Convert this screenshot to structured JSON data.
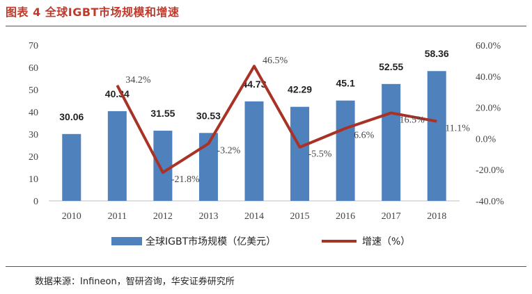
{
  "title": "图表 4 全球IGBT市场规模和增速",
  "source": "数据来源：Infineon，智研咨询，华安证券研究所",
  "colors": {
    "bar": "#4f81bd",
    "line": "#a93226",
    "title": "#c0392b"
  },
  "chart_data": {
    "type": "bar",
    "categories": [
      "2010",
      "2011",
      "2012",
      "2013",
      "2014",
      "2015",
      "2016",
      "2017",
      "2018"
    ],
    "series": [
      {
        "name": "全球IGBT市场规模（亿美元）",
        "type": "bar",
        "axis": "left",
        "values": [
          30.06,
          40.34,
          31.55,
          30.53,
          44.73,
          42.29,
          45.1,
          52.55,
          58.36
        ],
        "labels": [
          "30.06",
          "40.34",
          "31.55",
          "30.53",
          "44.73",
          "42.29",
          "45.1",
          "52.55",
          "58.36"
        ]
      },
      {
        "name": "增速（%）",
        "type": "line",
        "axis": "right",
        "values": [
          null,
          34.2,
          -21.8,
          -3.2,
          46.5,
          -5.5,
          6.6,
          16.5,
          11.1
        ],
        "labels": [
          "",
          "34.2%",
          "-21.8%",
          "-3.2%",
          "46.5%",
          "-5.5%",
          "6.6%",
          "16.5%",
          "11.1%"
        ]
      }
    ],
    "y_left": {
      "min": 0,
      "max": 70,
      "ticks": [
        "0",
        "10",
        "20",
        "30",
        "40",
        "50",
        "60",
        "70"
      ]
    },
    "y_right": {
      "min": -40,
      "max": 60,
      "ticks": [
        "-40.0%",
        "-20.0%",
        "0.0%",
        "20.0%",
        "40.0%",
        "60.0%"
      ]
    },
    "grid": false,
    "legend": "bottom"
  }
}
